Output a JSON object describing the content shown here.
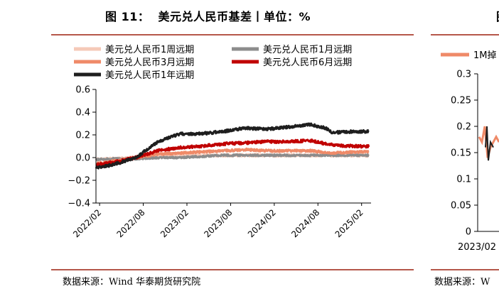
{
  "left": {
    "figure_title": "图 11：  美元兑人民币基差丨单位：%",
    "source": "数据来源：Wind 华泰期货研究院"
  },
  "right": {
    "figure_title": "图",
    "source": "数据来源：W"
  },
  "colors": {
    "rule": "#b5574a",
    "w1": "#f5c9b8",
    "m1": "#8c8c8c",
    "m3": "#ef8a68",
    "m6": "#c00000",
    "y1": "#1e1e1e",
    "right_series": "#ef8a68"
  },
  "chart_data": [
    {
      "type": "line",
      "title": "",
      "xlabel": "",
      "ylabel": "",
      "ylim": [
        -0.4,
        0.6
      ],
      "yticks": [
        "0.6",
        "0.4",
        "0.2",
        "0.0",
        "−0.2",
        "−0.4"
      ],
      "xticks": [
        "2022/02",
        "2022/08",
        "2023/02",
        "2023/08",
        "2024/02",
        "2024/08",
        "2025/02"
      ],
      "grid": false,
      "legend": "top",
      "series": [
        {
          "name": "美元兑人民币1周远期",
          "color": "#f5c9b8",
          "points": [
            [
              "2022-01",
              -0.02
            ],
            [
              "2022-04",
              -0.01
            ],
            [
              "2022-07",
              0.0
            ],
            [
              "2022-10",
              0.01
            ],
            [
              "2023-01",
              0.01
            ],
            [
              "2023-04",
              0.02
            ],
            [
              "2023-07",
              0.02
            ],
            [
              "2023-10",
              0.02
            ],
            [
              "2024-01",
              0.02
            ],
            [
              "2024-04",
              0.02
            ],
            [
              "2024-07",
              0.02
            ],
            [
              "2024-10",
              0.02
            ],
            [
              "2025-01",
              0.02
            ],
            [
              "2025-03",
              0.02
            ]
          ]
        },
        {
          "name": "美元兑人民币1月远期",
          "color": "#8c8c8c",
          "points": [
            [
              "2022-01",
              -0.02
            ],
            [
              "2022-04",
              -0.01
            ],
            [
              "2022-07",
              -0.01
            ],
            [
              "2022-10",
              0.0
            ],
            [
              "2023-01",
              0.0
            ],
            [
              "2023-04",
              0.01
            ],
            [
              "2023-07",
              0.02
            ],
            [
              "2023-10",
              0.02
            ],
            [
              "2024-01",
              0.02
            ],
            [
              "2024-04",
              0.02
            ],
            [
              "2024-07",
              0.02
            ],
            [
              "2024-10",
              0.02
            ],
            [
              "2025-01",
              0.02
            ],
            [
              "2025-03",
              0.02
            ]
          ]
        },
        {
          "name": "美元兑人民币3月远期",
          "color": "#ef8a68",
          "points": [
            [
              "2022-01",
              -0.06
            ],
            [
              "2022-04",
              -0.03
            ],
            [
              "2022-07",
              0.0
            ],
            [
              "2022-10",
              0.03
            ],
            [
              "2023-01",
              0.04
            ],
            [
              "2023-04",
              0.05
            ],
            [
              "2023-07",
              0.06
            ],
            [
              "2023-10",
              0.07
            ],
            [
              "2024-01",
              0.06
            ],
            [
              "2024-04",
              0.06
            ],
            [
              "2024-07",
              0.06
            ],
            [
              "2024-10",
              0.04
            ],
            [
              "2025-01",
              0.05
            ],
            [
              "2025-03",
              0.05
            ]
          ]
        },
        {
          "name": "美元兑人民币6月远期",
          "color": "#c00000",
          "points": [
            [
              "2022-01",
              -0.07
            ],
            [
              "2022-04",
              -0.04
            ],
            [
              "2022-07",
              0.0
            ],
            [
              "2022-10",
              0.06
            ],
            [
              "2023-01",
              0.09
            ],
            [
              "2023-04",
              0.1
            ],
            [
              "2023-07",
              0.12
            ],
            [
              "2023-10",
              0.13
            ],
            [
              "2024-01",
              0.14
            ],
            [
              "2024-04",
              0.14
            ],
            [
              "2024-07",
              0.15
            ],
            [
              "2024-10",
              0.11
            ],
            [
              "2025-01",
              0.1
            ],
            [
              "2025-03",
              0.1
            ]
          ]
        },
        {
          "name": "美元兑人民币1年远期",
          "color": "#1e1e1e",
          "points": [
            [
              "2022-01",
              -0.1
            ],
            [
              "2022-04",
              -0.06
            ],
            [
              "2022-07",
              0.0
            ],
            [
              "2022-10",
              0.14
            ],
            [
              "2023-01",
              0.21
            ],
            [
              "2023-04",
              0.21
            ],
            [
              "2023-07",
              0.23
            ],
            [
              "2023-10",
              0.26
            ],
            [
              "2024-01",
              0.25
            ],
            [
              "2024-04",
              0.27
            ],
            [
              "2024-07",
              0.29
            ],
            [
              "2024-09",
              0.26
            ],
            [
              "2024-10",
              0.22
            ],
            [
              "2025-01",
              0.23
            ],
            [
              "2025-03",
              0.23
            ]
          ]
        }
      ]
    },
    {
      "type": "line",
      "title": "",
      "ylim": [
        0,
        0.3
      ],
      "yticks": [
        "0.3",
        "0.25",
        "0.2",
        "0.15",
        "0.1",
        "0.05",
        "0"
      ],
      "xticks": [
        "2023/02"
      ],
      "legend": "top",
      "series": [
        {
          "name": "1M掉",
          "color": "#ef8a68",
          "points": [
            [
              0,
              0.18
            ],
            [
              1,
              0.17
            ],
            [
              2,
              0.2
            ],
            [
              3,
              0.14
            ],
            [
              4,
              0.16
            ],
            [
              5,
              0.17
            ],
            [
              6,
              0.18
            ],
            [
              7,
              0.17
            ]
          ]
        }
      ]
    }
  ]
}
